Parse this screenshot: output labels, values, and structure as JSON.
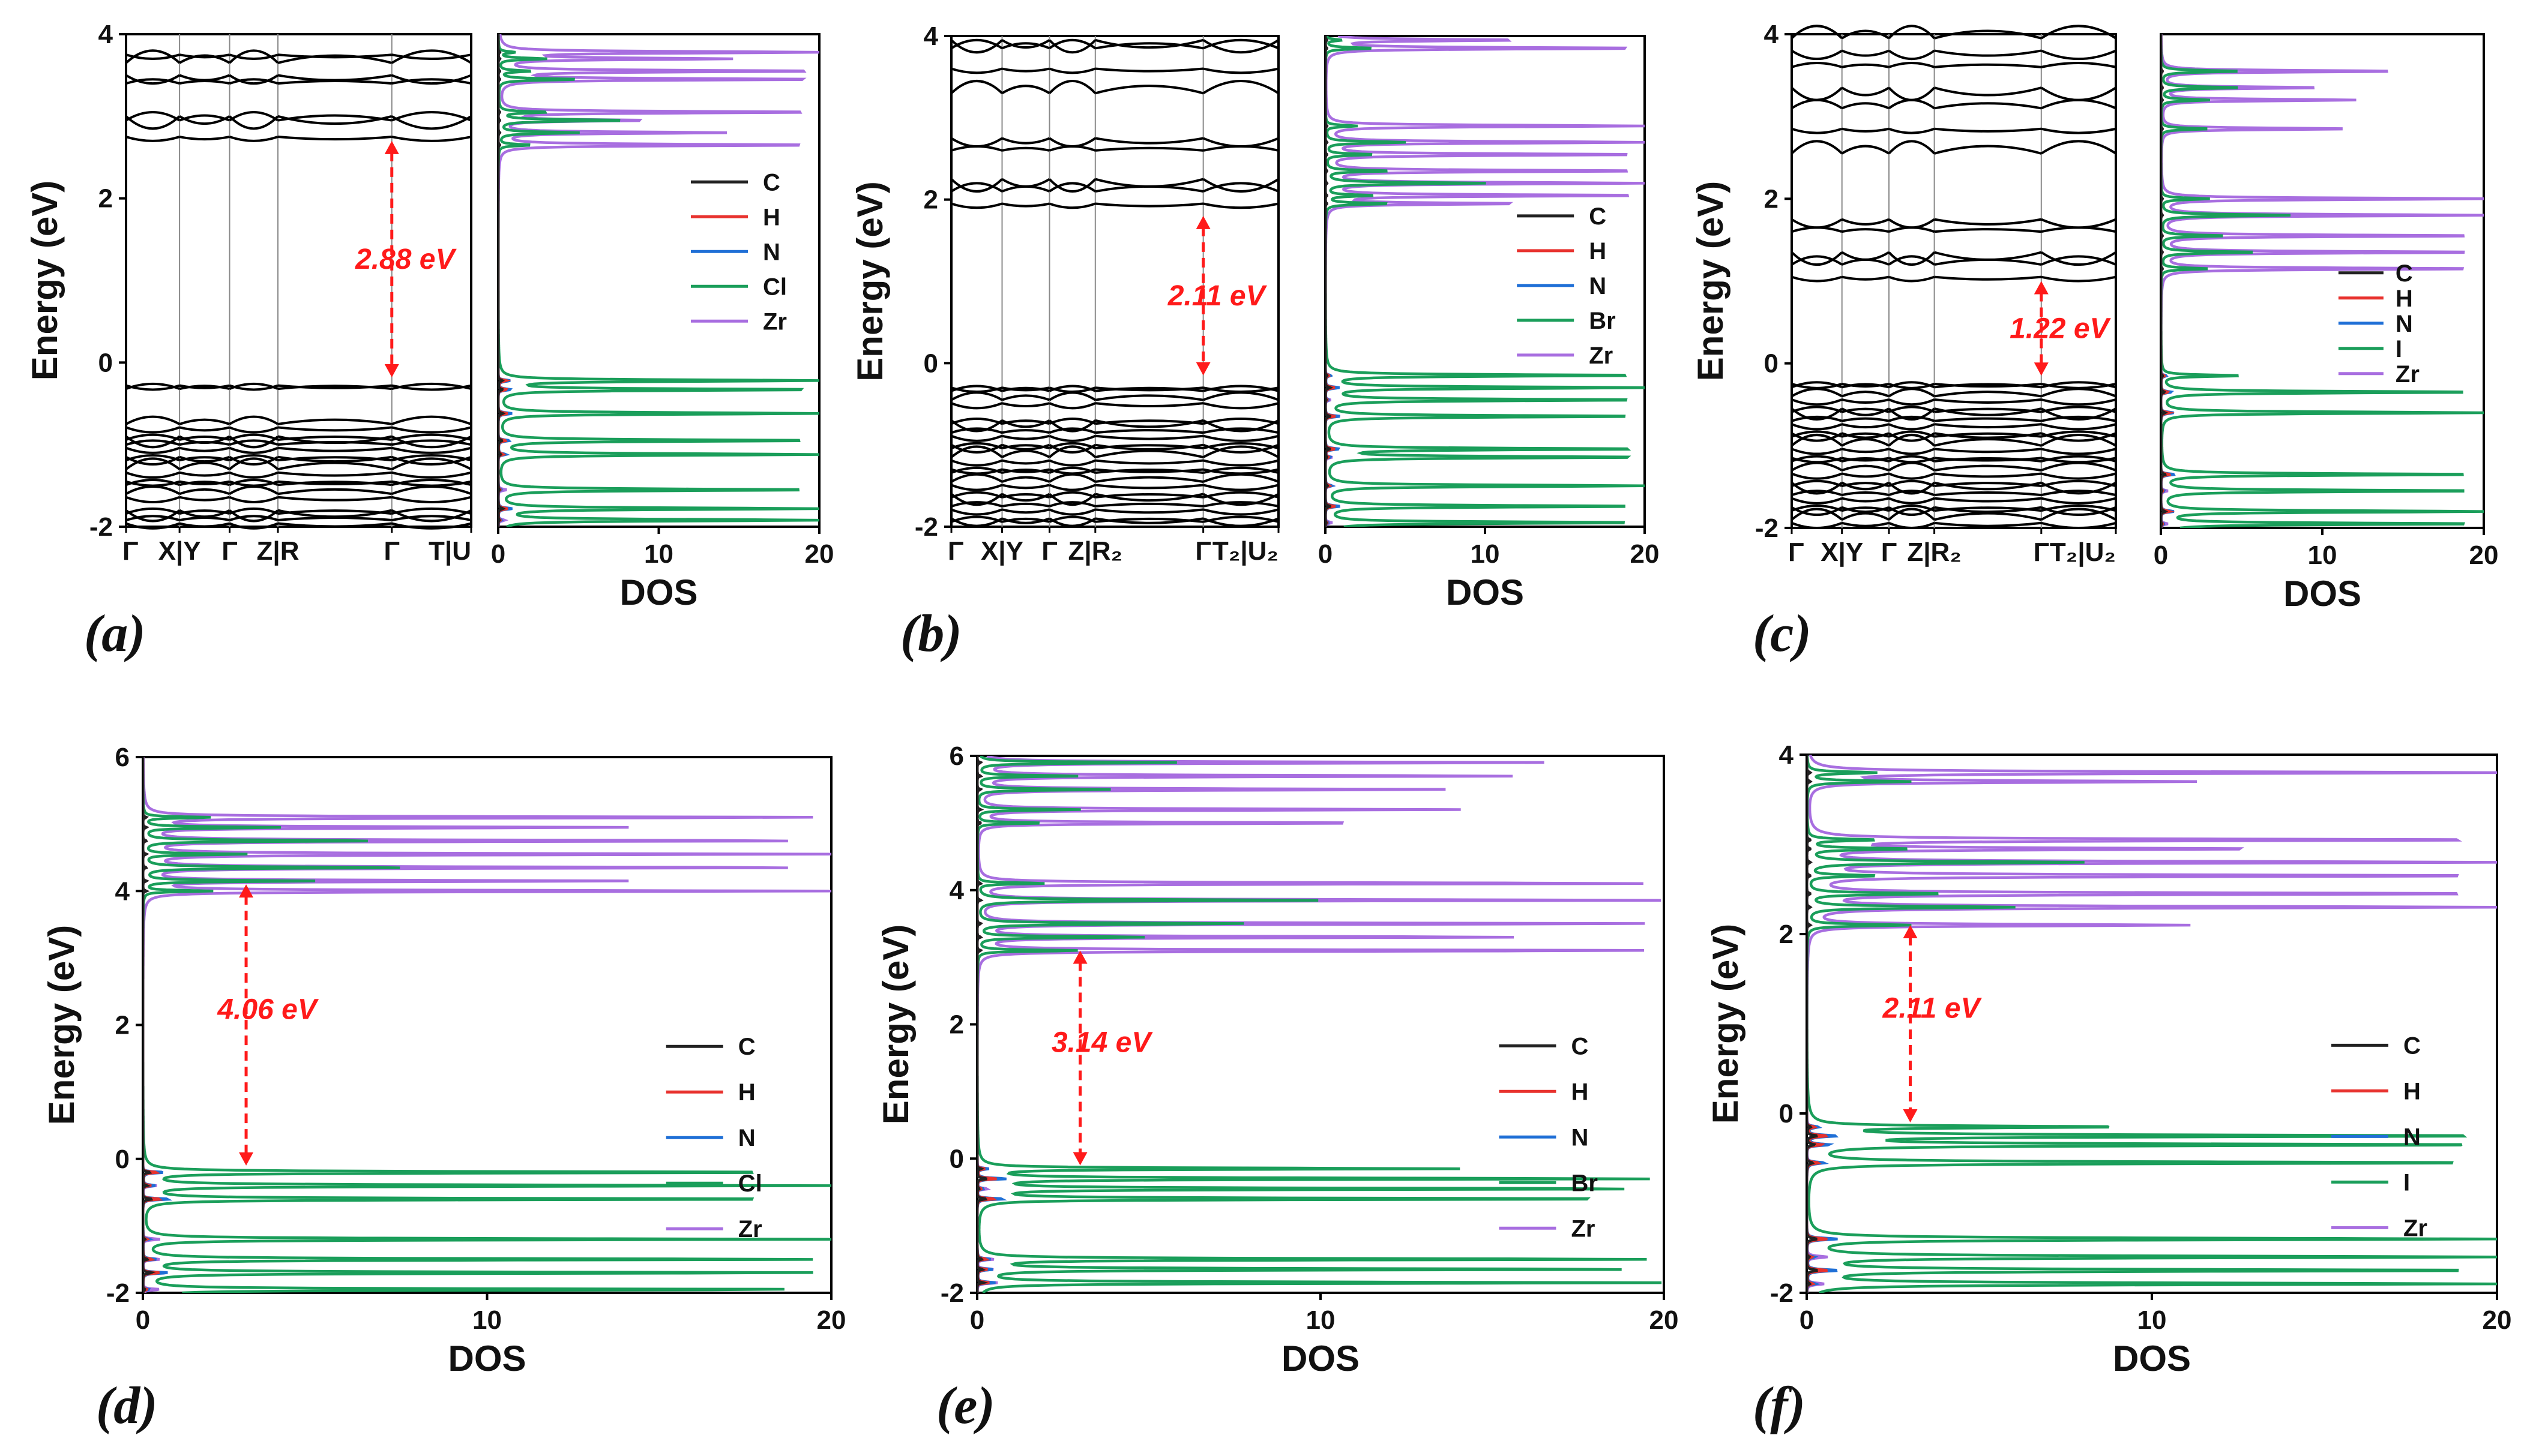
{
  "colors": {
    "C": "#222222",
    "H": "#e8322e",
    "N": "#1f6fd6",
    "X": "#1a9e5a",
    "Zr": "#a86ee0",
    "bands": "#000000",
    "gap": "#ff1a1a",
    "panel_line": "#8a8a8a"
  },
  "chart_data": [
    {
      "panel": "(a)",
      "type": "line",
      "subtype": "band-structure + DOS",
      "ylabel": "Energy (eV)",
      "xlabel": "DOS",
      "ylim": [
        -2,
        4
      ],
      "yticks": [
        "-2",
        "0",
        "2",
        "4"
      ],
      "dos_xlim": [
        0,
        20
      ],
      "dos_xticks": [
        "0",
        "10",
        "20"
      ],
      "kpath_labels": [
        "Γ",
        "X|Y",
        "Γ",
        "Z|R",
        "Γ",
        "T|U"
      ],
      "gap_label": "2.88 eV",
      "gap": [
        -0.18,
        2.7
      ],
      "legend": [
        "C",
        "H",
        "N",
        "Cl",
        "Zr"
      ],
      "halogen": "Cl",
      "valence_bands": [
        -0.28,
        -0.75,
        -0.9,
        -1.0,
        -1.15,
        -1.3,
        -1.45,
        -1.6,
        -1.8,
        -1.92
      ],
      "conduction_bands": [
        2.75,
        2.95,
        3.0,
        3.4,
        3.5,
        3.65,
        3.75
      ],
      "dos_peaks": [
        {
          "E": -0.22,
          "X": 20,
          "Zr": 0.3
        },
        {
          "E": -0.33,
          "X": 20,
          "Zr": 0.3
        },
        {
          "E": -0.62,
          "X": 20,
          "Zr": 0.3
        },
        {
          "E": -0.95,
          "X": 20,
          "Zr": 0.4
        },
        {
          "E": -1.12,
          "X": 20,
          "Zr": 0.4
        },
        {
          "E": -1.55,
          "X": 20,
          "Zr": 0.5
        },
        {
          "E": -1.78,
          "X": 20,
          "Zr": 0.5
        },
        {
          "E": -1.92,
          "X": 20,
          "Zr": 0.4
        },
        {
          "E": 2.65,
          "X": 2,
          "Zr": 20
        },
        {
          "E": 2.8,
          "X": 5,
          "Zr": 14
        },
        {
          "E": 2.95,
          "X": 8,
          "Zr": 9
        },
        {
          "E": 3.05,
          "X": 3,
          "Zr": 20
        },
        {
          "E": 3.45,
          "X": 5,
          "Zr": 20
        },
        {
          "E": 3.55,
          "X": 2,
          "Zr": 20
        },
        {
          "E": 3.7,
          "X": 3,
          "Zr": 14
        },
        {
          "E": 3.78,
          "X": 1,
          "Zr": 20
        }
      ]
    },
    {
      "panel": "(b)",
      "type": "line",
      "subtype": "band-structure + DOS",
      "ylabel": "Energy (eV)",
      "xlabel": "DOS",
      "ylim": [
        -2,
        4
      ],
      "yticks": [
        "-2",
        "0",
        "2",
        "4"
      ],
      "dos_xlim": [
        0,
        20
      ],
      "dos_xticks": [
        "0",
        "10",
        "20"
      ],
      "kpath_labels": [
        "Γ",
        "X|Y",
        "Γ",
        "Z|R₂",
        "Γ",
        "T₂|U₂"
      ],
      "gap_label": "2.11 eV",
      "gap": [
        -0.15,
        1.8
      ],
      "legend": [
        "C",
        "H",
        "N",
        "Br",
        "Zr"
      ],
      "halogen": "Br",
      "valence_bands": [
        -0.3,
        -0.45,
        -0.7,
        -0.85,
        -1.0,
        -1.15,
        -1.3,
        -1.45,
        -1.6,
        -1.75,
        -1.9
      ],
      "conduction_bands": [
        1.95,
        2.1,
        2.25,
        2.6,
        2.75,
        3.3,
        3.6,
        3.85,
        3.95
      ],
      "dos_peaks": [
        {
          "E": -0.15,
          "X": 20,
          "Zr": 0.3
        },
        {
          "E": -0.3,
          "X": 20,
          "Zr": 0.3
        },
        {
          "E": -0.45,
          "X": 20,
          "Zr": 0.3
        },
        {
          "E": -0.65,
          "X": 20,
          "Zr": 0.3
        },
        {
          "E": -1.05,
          "X": 20,
          "Zr": 0.4
        },
        {
          "E": -1.15,
          "X": 20,
          "Zr": 0.4
        },
        {
          "E": -1.5,
          "X": 20,
          "Zr": 0.4
        },
        {
          "E": -1.75,
          "X": 20,
          "Zr": 0.5
        },
        {
          "E": -1.95,
          "X": 20,
          "Zr": 0.4
        },
        {
          "E": 1.95,
          "X": 4,
          "Zr": 12
        },
        {
          "E": 2.05,
          "X": 3,
          "Zr": 20
        },
        {
          "E": 2.2,
          "X": 10,
          "Zr": 20
        },
        {
          "E": 2.35,
          "X": 4,
          "Zr": 20
        },
        {
          "E": 2.55,
          "X": 3,
          "Zr": 20
        },
        {
          "E": 2.7,
          "X": 5,
          "Zr": 20
        },
        {
          "E": 2.9,
          "X": 2,
          "Zr": 20
        },
        {
          "E": 3.85,
          "X": 3,
          "Zr": 20
        },
        {
          "E": 3.95,
          "X": 1,
          "Zr": 12
        }
      ]
    },
    {
      "panel": "(c)",
      "type": "line",
      "subtype": "band-structure + DOS",
      "ylabel": "Energy (eV)",
      "xlabel": "DOS",
      "ylim": [
        -2,
        4
      ],
      "yticks": [
        "-2",
        "0",
        "2",
        "4"
      ],
      "dos_xlim": [
        0,
        20
      ],
      "dos_xticks": [
        "0",
        "10",
        "20"
      ],
      "kpath_labels": [
        "Γ",
        "X|Y",
        "Γ",
        "Z|R₂",
        "Γ",
        "T₂|U₂"
      ],
      "gap_label": "1.22 eV",
      "gap": [
        -0.15,
        1.0
      ],
      "legend": [
        "C",
        "H",
        "N",
        "I",
        "Zr"
      ],
      "halogen": "I",
      "valence_bands": [
        -0.25,
        -0.4,
        -0.55,
        -0.7,
        -0.85,
        -1.0,
        -1.15,
        -1.3,
        -1.45,
        -1.6,
        -1.75,
        -1.9
      ],
      "conduction_bands": [
        1.05,
        1.2,
        1.35,
        1.6,
        1.75,
        2.55,
        2.85,
        3.1,
        3.35,
        3.6,
        3.8,
        3.95
      ],
      "dos_peaks": [
        {
          "E": -0.15,
          "X": 5,
          "Zr": 0.3
        },
        {
          "E": -0.35,
          "X": 20,
          "Zr": 0.3
        },
        {
          "E": -0.6,
          "X": 20,
          "Zr": 0.3
        },
        {
          "E": -1.35,
          "X": 20,
          "Zr": 0.4
        },
        {
          "E": -1.55,
          "X": 20,
          "Zr": 0.4
        },
        {
          "E": -1.8,
          "X": 20,
          "Zr": 0.5
        },
        {
          "E": -1.95,
          "X": 20,
          "Zr": 0.4
        },
        {
          "E": 1.15,
          "X": 3,
          "Zr": 20
        },
        {
          "E": 1.35,
          "X": 6,
          "Zr": 20
        },
        {
          "E": 1.55,
          "X": 4,
          "Zr": 20
        },
        {
          "E": 1.8,
          "X": 8,
          "Zr": 20
        },
        {
          "E": 2.0,
          "X": 3,
          "Zr": 20
        },
        {
          "E": 2.85,
          "X": 3,
          "Zr": 12
        },
        {
          "E": 3.2,
          "X": 3,
          "Zr": 12
        },
        {
          "E": 3.35,
          "X": 5,
          "Zr": 10
        },
        {
          "E": 3.55,
          "X": 5,
          "Zr": 15
        }
      ]
    },
    {
      "panel": "(d)",
      "type": "line",
      "subtype": "DOS",
      "ylabel": "Energy (eV)",
      "xlabel": "DOS",
      "ylim": [
        -2,
        6
      ],
      "yticks": [
        "-2",
        "0",
        "2",
        "4",
        "6"
      ],
      "dos_xlim": [
        0,
        20
      ],
      "dos_xticks": [
        "0",
        "10",
        "20"
      ],
      "gap_label": "4.06 eV",
      "gap": [
        -0.1,
        4.1
      ],
      "legend": [
        "C",
        "H",
        "N",
        "Cl",
        "Zr"
      ],
      "halogen": "Cl",
      "dos_peaks": [
        {
          "E": -0.2,
          "X": 20,
          "Zr": 0.3
        },
        {
          "E": -0.4,
          "X": 20,
          "Zr": 0.4
        },
        {
          "E": -0.6,
          "X": 20,
          "Zr": 0.4
        },
        {
          "E": -1.2,
          "X": 20,
          "Zr": 0.5
        },
        {
          "E": -1.5,
          "X": 20,
          "Zr": 0.5
        },
        {
          "E": -1.7,
          "X": 20,
          "Zr": 0.6
        },
        {
          "E": -1.95,
          "X": 20,
          "Zr": 0.5
        },
        {
          "E": 4.0,
          "X": 2,
          "Zr": 20
        },
        {
          "E": 4.15,
          "X": 5,
          "Zr": 14
        },
        {
          "E": 4.35,
          "X": 8,
          "Zr": 20
        },
        {
          "E": 4.55,
          "X": 3,
          "Zr": 20
        },
        {
          "E": 4.75,
          "X": 7,
          "Zr": 20
        },
        {
          "E": 4.95,
          "X": 4,
          "Zr": 14
        },
        {
          "E": 5.1,
          "X": 2,
          "Zr": 20
        }
      ]
    },
    {
      "panel": "(e)",
      "type": "line",
      "subtype": "DOS",
      "ylabel": "Energy (eV)",
      "xlabel": "DOS",
      "ylim": [
        -2,
        6
      ],
      "yticks": [
        "-2",
        "0",
        "2",
        "4",
        "6"
      ],
      "dos_xlim": [
        0,
        20
      ],
      "dos_xticks": [
        "0",
        "10",
        "20"
      ],
      "gap_label": "3.14 eV",
      "gap": [
        -0.1,
        3.1
      ],
      "legend": [
        "C",
        "H",
        "N",
        "Br",
        "Zr"
      ],
      "halogen": "Br",
      "dos_peaks": [
        {
          "E": -0.15,
          "X": 14,
          "Zr": 0.3
        },
        {
          "E": -0.3,
          "X": 20,
          "Zr": 0.3
        },
        {
          "E": -0.45,
          "X": 20,
          "Zr": 0.3
        },
        {
          "E": -0.6,
          "X": 20,
          "Zr": 0.4
        },
        {
          "E": -1.5,
          "X": 20,
          "Zr": 0.5
        },
        {
          "E": -1.65,
          "X": 20,
          "Zr": 0.5
        },
        {
          "E": -1.85,
          "X": 20,
          "Zr": 0.6
        },
        {
          "E": 3.1,
          "X": 3,
          "Zr": 20
        },
        {
          "E": 3.3,
          "X": 5,
          "Zr": 16
        },
        {
          "E": 3.5,
          "X": 8,
          "Zr": 20
        },
        {
          "E": 3.85,
          "X": 10,
          "Zr": 20
        },
        {
          "E": 4.1,
          "X": 2,
          "Zr": 20
        },
        {
          "E": 5.0,
          "X": 2,
          "Zr": 12
        },
        {
          "E": 5.2,
          "X": 3,
          "Zr": 14
        },
        {
          "E": 5.5,
          "X": 4,
          "Zr": 14
        },
        {
          "E": 5.7,
          "X": 3,
          "Zr": 16
        },
        {
          "E": 5.9,
          "X": 6,
          "Zr": 17
        }
      ]
    },
    {
      "panel": "(f)",
      "type": "line",
      "subtype": "DOS",
      "ylabel": "Energy (eV)",
      "xlabel": "DOS",
      "ylim": [
        -2,
        4
      ],
      "yticks": [
        "-2",
        "0",
        "2",
        "4"
      ],
      "dos_xlim": [
        0,
        20
      ],
      "dos_xticks": [
        "0",
        "10",
        "20"
      ],
      "gap_label": "2.11 eV",
      "gap": [
        -0.1,
        2.1
      ],
      "legend": [
        "C",
        "H",
        "N",
        "I",
        "Zr"
      ],
      "halogen": "I",
      "dos_peaks": [
        {
          "E": -0.15,
          "X": 9,
          "Zr": 0.3
        },
        {
          "E": -0.25,
          "X": 20,
          "Zr": 0.3
        },
        {
          "E": -0.35,
          "X": 20,
          "Zr": 0.3
        },
        {
          "E": -0.55,
          "X": 20,
          "Zr": 0.4
        },
        {
          "E": -1.4,
          "X": 20,
          "Zr": 0.5
        },
        {
          "E": -1.6,
          "X": 20,
          "Zr": 0.6
        },
        {
          "E": -1.75,
          "X": 20,
          "Zr": 0.5
        },
        {
          "E": -1.9,
          "X": 20,
          "Zr": 0.5
        },
        {
          "E": 2.1,
          "X": 3,
          "Zr": 11
        },
        {
          "E": 2.3,
          "X": 6,
          "Zr": 20
        },
        {
          "E": 2.45,
          "X": 4,
          "Zr": 20
        },
        {
          "E": 2.65,
          "X": 2,
          "Zr": 20
        },
        {
          "E": 2.8,
          "X": 8,
          "Zr": 20
        },
        {
          "E": 2.95,
          "X": 3,
          "Zr": 13
        },
        {
          "E": 3.05,
          "X": 2,
          "Zr": 20
        },
        {
          "E": 3.7,
          "X": 3,
          "Zr": 11
        },
        {
          "E": 3.8,
          "X": 2,
          "Zr": 20
        }
      ]
    }
  ]
}
